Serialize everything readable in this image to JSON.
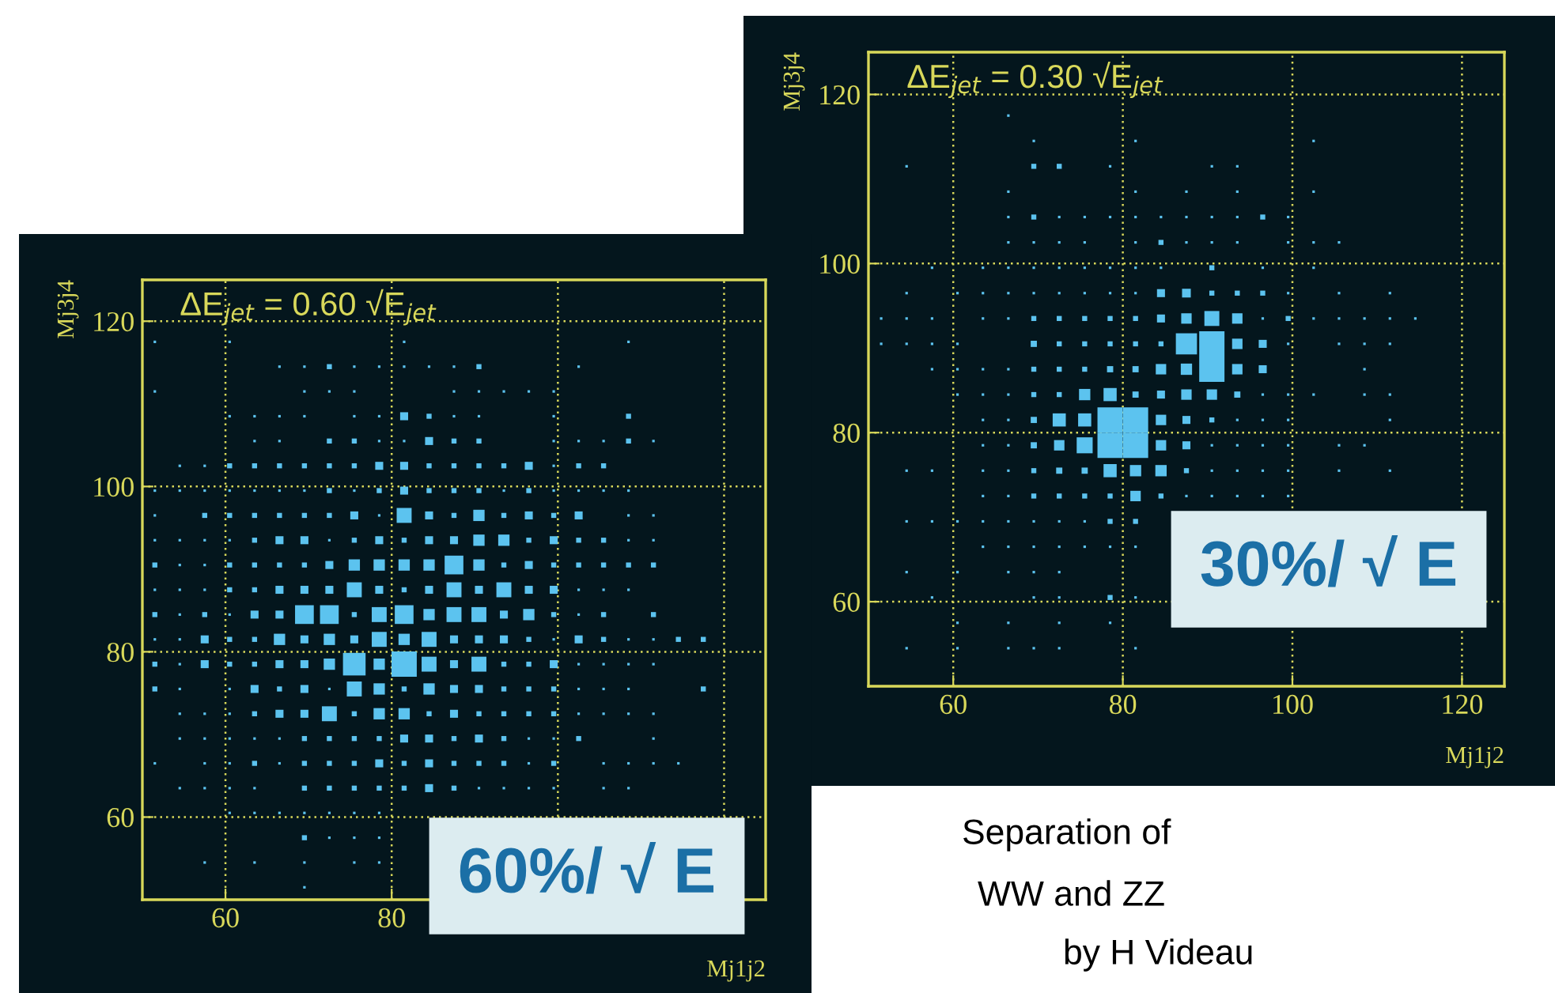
{
  "chart_data": [
    {
      "type": "bubble",
      "title": "ΔE$_{jet}$ = 0.60 √E$_{jet}$",
      "xlabel": "Mj1j2",
      "ylabel": "Mj3j4",
      "marker": "square",
      "grid": true,
      "xlim": [
        50,
        125
      ],
      "ylim": [
        50,
        125
      ],
      "xticks": [
        60,
        80,
        {
          "value": 100,
          "label": null
        },
        {
          "value": 120,
          "label": null
        }
      ],
      "yticks": [
        60,
        80,
        100,
        120
      ],
      "annotations": [
        "60%/ √ E"
      ],
      "series": [
        {
          "color": "#5cc3ef",
          "x": [
            51.5,
            60.5,
            81.5,
            108.5,
            66.5,
            69.5,
            72.5,
            75.5,
            78.5,
            81.5,
            84.5,
            87.5,
            90.5,
            102.5,
            51.5,
            69.5,
            72.5,
            75.5,
            87.5,
            90.5,
            93.5,
            96.5,
            99.5,
            60.5,
            63.5,
            66.5,
            69.5,
            75.5,
            78.5,
            81.5,
            84.5,
            87.5,
            90.5,
            99.5,
            108.5,
            63.5,
            66.5,
            72.5,
            75.5,
            78.5,
            81.5,
            84.5,
            87.5,
            90.5,
            99.5,
            102.5,
            105.5,
            108.5,
            111.5,
            54.5,
            57.5,
            60.5,
            63.5,
            66.5,
            69.5,
            72.5,
            75.5,
            78.5,
            81.5,
            84.5,
            87.5,
            90.5,
            93.5,
            96.5,
            99.5,
            102.5,
            105.5,
            51.5,
            54.5,
            57.5,
            60.5,
            63.5,
            66.5,
            69.5,
            72.5,
            75.5,
            78.5,
            81.5,
            84.5,
            87.5,
            90.5,
            93.5,
            96.5,
            99.5,
            102.5,
            105.5,
            108.5,
            51.5,
            57.5,
            60.5,
            63.5,
            66.5,
            69.5,
            72.5,
            75.5,
            78.5,
            81.5,
            84.5,
            87.5,
            90.5,
            93.5,
            96.5,
            99.5,
            102.5,
            108.5,
            111.5,
            51.5,
            54.5,
            57.5,
            60.5,
            63.5,
            66.5,
            69.5,
            72.5,
            75.5,
            78.5,
            81.5,
            84.5,
            87.5,
            90.5,
            93.5,
            96.5,
            99.5,
            102.5,
            105.5,
            108.5,
            111.5,
            51.5,
            54.5,
            57.5,
            60.5,
            63.5,
            66.5,
            69.5,
            72.5,
            75.5,
            78.5,
            81.5,
            84.5,
            87.5,
            90.5,
            93.5,
            96.5,
            99.5,
            102.5,
            105.5,
            108.5,
            111.5,
            51.5,
            54.5,
            57.5,
            60.5,
            63.5,
            66.5,
            69.5,
            72.5,
            75.5,
            78.5,
            81.5,
            84.5,
            87.5,
            90.5,
            93.5,
            96.5,
            99.5,
            102.5,
            105.5,
            108.5,
            51.5,
            54.5,
            57.5,
            60.5,
            63.5,
            66.5,
            69.5,
            72.5,
            75.5,
            78.5,
            81.5,
            84.5,
            87.5,
            90.5,
            93.5,
            96.5,
            99.5,
            102.5,
            105.5,
            111.5,
            51.5,
            54.5,
            57.5,
            60.5,
            63.5,
            66.5,
            69.5,
            72.5,
            75.5,
            78.5,
            81.5,
            84.5,
            87.5,
            90.5,
            93.5,
            96.5,
            99.5,
            102.5,
            105.5,
            108.5,
            111.5,
            114.5,
            117.5,
            51.5,
            54.5,
            57.5,
            60.5,
            63.5,
            66.5,
            69.5,
            72.5,
            75.5,
            78.5,
            81.5,
            84.5,
            87.5,
            90.5,
            93.5,
            96.5,
            99.5,
            102.5,
            105.5,
            108.5,
            111.5,
            51.5,
            54.5,
            60.5,
            63.5,
            66.5,
            69.5,
            72.5,
            75.5,
            78.5,
            81.5,
            84.5,
            87.5,
            90.5,
            93.5,
            96.5,
            99.5,
            102.5,
            105.5,
            108.5,
            117.5,
            54.5,
            57.5,
            60.5,
            63.5,
            66.5,
            69.5,
            72.5,
            75.5,
            78.5,
            81.5,
            84.5,
            87.5,
            90.5,
            93.5,
            96.5,
            99.5,
            102.5,
            105.5,
            108.5,
            111.5,
            54.5,
            57.5,
            60.5,
            63.5,
            66.5,
            69.5,
            72.5,
            75.5,
            78.5,
            81.5,
            84.5,
            87.5,
            90.5,
            93.5,
            96.5,
            99.5,
            102.5,
            111.5,
            51.5,
            57.5,
            60.5,
            63.5,
            66.5,
            69.5,
            72.5,
            75.5,
            78.5,
            81.5,
            84.5,
            87.5,
            90.5,
            93.5,
            96.5,
            99.5,
            105.5,
            108.5,
            111.5,
            114.5,
            54.5,
            57.5,
            60.5,
            63.5,
            69.5,
            72.5,
            75.5,
            78.5,
            81.5,
            84.5,
            87.5,
            90.5,
            93.5,
            96.5,
            99.5,
            105.5,
            108.5,
            60.5,
            63.5,
            66.5,
            69.5,
            72.5,
            75.5,
            78.5,
            69.5,
            72.5,
            75.5,
            78.5,
            57.5,
            63.5,
            69.5,
            75.5,
            78.5,
            69.5
          ],
          "values": [
            117.5,
            117.5,
            117.5,
            117.5,
            114.5,
            114.5,
            114.5,
            114.5,
            114.5,
            114.5,
            114.5,
            114.5,
            114.5,
            114.5,
            111.5,
            111.5,
            111.5,
            111.5,
            111.5,
            111.5,
            111.5,
            111.5,
            111.5,
            108.5,
            108.5,
            108.5,
            108.5,
            108.5,
            108.5,
            108.5,
            108.5,
            108.5,
            108.5,
            108.5,
            108.5,
            105.5,
            105.5,
            105.5,
            105.5,
            105.5,
            105.5,
            105.5,
            105.5,
            105.5,
            105.5,
            105.5,
            105.5,
            105.5,
            105.5,
            102.5,
            102.5,
            102.5,
            102.5,
            102.5,
            102.5,
            102.5,
            102.5,
            102.5,
            102.5,
            102.5,
            102.5,
            102.5,
            102.5,
            102.5,
            102.5,
            102.5,
            102.5,
            99.5,
            99.5,
            99.5,
            99.5,
            99.5,
            99.5,
            99.5,
            99.5,
            99.5,
            99.5,
            99.5,
            99.5,
            99.5,
            99.5,
            99.5,
            99.5,
            99.5,
            99.5,
            99.5,
            99.5,
            96.5,
            96.5,
            96.5,
            96.5,
            96.5,
            96.5,
            96.5,
            96.5,
            96.5,
            96.5,
            96.5,
            96.5,
            96.5,
            96.5,
            96.5,
            96.5,
            96.5,
            96.5,
            96.5,
            93.5,
            93.5,
            93.5,
            93.5,
            93.5,
            93.5,
            93.5,
            93.5,
            93.5,
            93.5,
            93.5,
            93.5,
            93.5,
            93.5,
            93.5,
            93.5,
            93.5,
            93.5,
            93.5,
            93.5,
            93.5,
            90.5,
            90.5,
            90.5,
            90.5,
            90.5,
            90.5,
            90.5,
            90.5,
            90.5,
            90.5,
            90.5,
            90.5,
            90.5,
            90.5,
            90.5,
            90.5,
            90.5,
            90.5,
            90.5,
            90.5,
            90.5,
            87.5,
            87.5,
            87.5,
            87.5,
            87.5,
            87.5,
            87.5,
            87.5,
            87.5,
            87.5,
            87.5,
            87.5,
            87.5,
            87.5,
            87.5,
            87.5,
            87.5,
            87.5,
            87.5,
            87.5,
            84.5,
            84.5,
            84.5,
            84.5,
            84.5,
            84.5,
            84.5,
            84.5,
            84.5,
            84.5,
            84.5,
            84.5,
            84.5,
            84.5,
            84.5,
            84.5,
            84.5,
            84.5,
            84.5,
            84.5,
            81.5,
            81.5,
            81.5,
            81.5,
            81.5,
            81.5,
            81.5,
            81.5,
            81.5,
            81.5,
            81.5,
            81.5,
            81.5,
            81.5,
            81.5,
            81.5,
            81.5,
            81.5,
            81.5,
            81.5,
            81.5,
            81.5,
            81.5,
            78.5,
            78.5,
            78.5,
            78.5,
            78.5,
            78.5,
            78.5,
            78.5,
            78.5,
            78.5,
            78.5,
            78.5,
            78.5,
            78.5,
            78.5,
            78.5,
            78.5,
            78.5,
            78.5,
            78.5,
            78.5,
            75.5,
            75.5,
            75.5,
            75.5,
            75.5,
            75.5,
            75.5,
            75.5,
            75.5,
            75.5,
            75.5,
            75.5,
            75.5,
            75.5,
            75.5,
            75.5,
            75.5,
            75.5,
            75.5,
            75.5,
            72.5,
            72.5,
            72.5,
            72.5,
            72.5,
            72.5,
            72.5,
            72.5,
            72.5,
            72.5,
            72.5,
            72.5,
            72.5,
            72.5,
            72.5,
            72.5,
            72.5,
            72.5,
            72.5,
            72.5,
            69.5,
            69.5,
            69.5,
            69.5,
            69.5,
            69.5,
            69.5,
            69.5,
            69.5,
            69.5,
            69.5,
            69.5,
            69.5,
            69.5,
            69.5,
            69.5,
            69.5,
            69.5,
            66.5,
            66.5,
            66.5,
            66.5,
            66.5,
            66.5,
            66.5,
            66.5,
            66.5,
            66.5,
            66.5,
            66.5,
            66.5,
            66.5,
            66.5,
            66.5,
            66.5,
            66.5,
            66.5,
            66.5,
            63.5,
            63.5,
            63.5,
            63.5,
            63.5,
            63.5,
            63.5,
            63.5,
            63.5,
            63.5,
            63.5,
            63.5,
            63.5,
            63.5,
            63.5,
            63.5,
            63.5,
            60.5,
            60.5,
            60.5,
            60.5,
            60.5,
            60.5,
            60.5,
            57.5,
            57.5,
            57.5,
            57.5,
            54.5,
            54.5,
            54.5,
            54.5,
            54.5,
            51.5
          ],
          "sizes": [
            0.01,
            0.01,
            0.01,
            0.01,
            0.01,
            0.01,
            0.04,
            0.01,
            0.01,
            0.01,
            0.01,
            0.01,
            0.04,
            0.01,
            0.01,
            0.01,
            0.01,
            0.01,
            0.01,
            0.01,
            0.01,
            0.01,
            0.01,
            0.01,
            0.01,
            0.01,
            0.01,
            0.01,
            0.01,
            0.1,
            0.04,
            0.01,
            0.01,
            0.01,
            0.04,
            0.01,
            0.01,
            0.04,
            0.04,
            0.01,
            0.01,
            0.1,
            0.04,
            0.04,
            0.01,
            0.01,
            0.01,
            0.04,
            0.01,
            0.01,
            0.01,
            0.04,
            0.04,
            0.04,
            0.04,
            0.04,
            0.04,
            0.1,
            0.1,
            0.04,
            0.04,
            0.04,
            0.04,
            0.1,
            0.01,
            0.04,
            0.04,
            0.01,
            0.01,
            0.01,
            0.01,
            0.01,
            0.01,
            0.01,
            0.04,
            0.01,
            0.04,
            0.1,
            0.04,
            0.04,
            0.04,
            0.01,
            0.04,
            0.01,
            0.01,
            0.01,
            0.01,
            0.01,
            0.04,
            0.04,
            0.04,
            0.04,
            0.04,
            0.04,
            0.1,
            0.01,
            0.35,
            0.1,
            0.04,
            0.2,
            0.04,
            0.1,
            0.04,
            0.1,
            0.01,
            0.01,
            0.01,
            0.01,
            0.01,
            0.01,
            0.04,
            0.1,
            0.1,
            0.01,
            0.04,
            0.1,
            0.04,
            0.1,
            0.1,
            0.2,
            0.2,
            0.04,
            0.1,
            0.04,
            0.04,
            0.01,
            0.01,
            0.04,
            0.01,
            0.01,
            0.04,
            0.04,
            0.04,
            0.04,
            0.1,
            0.2,
            0.2,
            0.2,
            0.2,
            0.55,
            0.2,
            0.04,
            0.1,
            0.04,
            0.04,
            0.04,
            0.04,
            0.04,
            0.01,
            0.01,
            0.01,
            0.04,
            0.04,
            0.1,
            0.1,
            0.1,
            0.35,
            0.1,
            0.04,
            0.1,
            0.35,
            0.1,
            0.35,
            0.1,
            0.1,
            0.01,
            0.01,
            0.01,
            0.04,
            0.01,
            0.04,
            0.01,
            0.1,
            0.1,
            0.55,
            0.55,
            0.04,
            0.35,
            0.55,
            0.2,
            0.35,
            0.35,
            0.1,
            0.2,
            0.04,
            0.01,
            0.04,
            0.04,
            0.01,
            0.01,
            0.1,
            0.04,
            0.04,
            0.2,
            0.1,
            0.2,
            0.1,
            0.35,
            0.2,
            0.35,
            0.1,
            0.1,
            0.1,
            0.04,
            0.01,
            0.1,
            0.04,
            0.01,
            0.01,
            0.04,
            0.04,
            0.04,
            0.01,
            0.1,
            0.04,
            0.04,
            0.1,
            0.1,
            0.2,
            0.8,
            0.2,
            1,
            0.35,
            0.1,
            0.35,
            0.04,
            0.04,
            0.1,
            0.01,
            0.01,
            0.01,
            0.01,
            0.04,
            0.01,
            0.01,
            0.1,
            0.04,
            0.1,
            0.01,
            0.35,
            0.2,
            0.04,
            0.2,
            0.1,
            0.1,
            0.04,
            0.04,
            0.04,
            0.01,
            0.01,
            0.01,
            0.04,
            0.01,
            0.01,
            0.01,
            0.04,
            0.1,
            0.1,
            0.35,
            0.04,
            0.2,
            0.2,
            0.04,
            0.1,
            0.04,
            0.04,
            0.04,
            0.04,
            0.01,
            0.01,
            0.01,
            0.01,
            0.01,
            0.01,
            0.01,
            0.01,
            0.01,
            0.04,
            0.04,
            0.04,
            0.04,
            0.1,
            0.1,
            0.04,
            0.1,
            0.04,
            0.01,
            0.01,
            0.04,
            0.01,
            0.01,
            0.01,
            0.01,
            0.04,
            0.01,
            0.04,
            0.04,
            0.04,
            0.1,
            0.04,
            0.1,
            0.04,
            0.04,
            0.04,
            0.01,
            0.04,
            0.01,
            0.01,
            0.01,
            0.01,
            0.01,
            0.01,
            0.01,
            0.01,
            0.04,
            0.04,
            0.04,
            0.04,
            0.04,
            0.1,
            0.04,
            0.01,
            0.01,
            0.01,
            0.01,
            0.01,
            0.01,
            0.01,
            0.01,
            0.01,
            0.01,
            0.01,
            0.01,
            0.01,
            0.04,
            0.01,
            0.01,
            0.01,
            0.01,
            0.01,
            0.01,
            0.01,
            0.01,
            0.01
          ]
        }
      ]
    },
    {
      "type": "bubble",
      "title": "ΔE$_{jet}$ = 0.30 √E$_{jet}$",
      "xlabel": "Mj1j2",
      "ylabel": "Mj3j4",
      "marker": "square",
      "grid": true,
      "xlim": [
        50,
        125
      ],
      "ylim": [
        50,
        125
      ],
      "xticks": [
        60,
        80,
        100,
        120
      ],
      "yticks": [
        60,
        80,
        100,
        120
      ],
      "annotations": [
        "30%/ √ E",
        "Separation of\nWW and ZZ\nby H Videau"
      ],
      "series": [
        {
          "color": "#5cc3ef",
          "x": [
            66.5,
            69.5,
            81.5,
            102.5,
            54.5,
            69.5,
            72.5,
            78.5,
            90.5,
            93.5,
            66.5,
            81.5,
            87.5,
            93.5,
            102.5,
            66.5,
            69.5,
            72.5,
            75.5,
            78.5,
            81.5,
            84.5,
            87.5,
            90.5,
            93.5,
            96.5,
            99.5,
            66.5,
            69.5,
            72.5,
            75.5,
            81.5,
            84.5,
            87.5,
            90.5,
            93.5,
            99.5,
            102.5,
            105.5,
            57.5,
            63.5,
            66.5,
            69.5,
            72.5,
            75.5,
            78.5,
            81.5,
            84.5,
            90.5,
            96.5,
            102.5,
            54.5,
            60.5,
            63.5,
            66.5,
            69.5,
            72.5,
            75.5,
            78.5,
            81.5,
            84.5,
            87.5,
            90.5,
            93.5,
            96.5,
            99.5,
            105.5,
            111.5,
            51.5,
            54.5,
            57.5,
            63.5,
            66.5,
            69.5,
            72.5,
            75.5,
            78.5,
            81.5,
            84.5,
            87.5,
            90.5,
            93.5,
            96.5,
            99.5,
            102.5,
            105.5,
            108.5,
            111.5,
            114.5,
            51.5,
            54.5,
            57.5,
            60.5,
            69.5,
            72.5,
            75.5,
            78.5,
            81.5,
            84.5,
            87.5,
            90.5,
            93.5,
            96.5,
            99.5,
            105.5,
            108.5,
            111.5,
            57.5,
            60.5,
            63.5,
            66.5,
            69.5,
            72.5,
            75.5,
            78.5,
            81.5,
            84.5,
            87.5,
            90.5,
            93.5,
            96.5,
            108.5,
            60.5,
            63.5,
            66.5,
            69.5,
            72.5,
            75.5,
            78.5,
            81.5,
            84.5,
            87.5,
            90.5,
            93.5,
            96.5,
            99.5,
            102.5,
            108.5,
            111.5,
            63.5,
            66.5,
            69.5,
            72.5,
            75.5,
            78.5,
            81.5,
            84.5,
            87.5,
            90.5,
            93.5,
            96.5,
            99.5,
            111.5,
            63.5,
            66.5,
            69.5,
            72.5,
            75.5,
            78.5,
            81.5,
            84.5,
            87.5,
            90.5,
            93.5,
            96.5,
            99.5,
            105.5,
            108.5,
            54.5,
            57.5,
            63.5,
            66.5,
            69.5,
            72.5,
            75.5,
            78.5,
            81.5,
            84.5,
            87.5,
            90.5,
            93.5,
            96.5,
            99.5,
            105.5,
            111.5,
            63.5,
            66.5,
            69.5,
            72.5,
            75.5,
            78.5,
            81.5,
            84.5,
            87.5,
            90.5,
            93.5,
            96.5,
            99.5,
            54.5,
            57.5,
            60.5,
            63.5,
            66.5,
            69.5,
            72.5,
            75.5,
            78.5,
            81.5,
            63.5,
            66.5,
            69.5,
            72.5,
            75.5,
            78.5,
            81.5,
            54.5,
            60.5,
            66.5,
            69.5,
            72.5,
            57.5,
            69.5,
            72.5,
            78.5,
            81.5,
            60.5,
            66.5,
            72.5,
            78.5,
            54.5,
            60.5,
            66.5,
            69.5,
            72.5,
            81.5
          ],
          "values": [
            117.5,
            114.5,
            114.5,
            114.5,
            111.5,
            111.5,
            111.5,
            111.5,
            111.5,
            111.5,
            108.5,
            108.5,
            108.5,
            108.5,
            108.5,
            105.5,
            105.5,
            105.5,
            105.5,
            105.5,
            105.5,
            105.5,
            105.5,
            105.5,
            105.5,
            105.5,
            105.5,
            102.5,
            102.5,
            102.5,
            102.5,
            102.5,
            102.5,
            102.5,
            102.5,
            102.5,
            102.5,
            102.5,
            102.5,
            99.5,
            99.5,
            99.5,
            99.5,
            99.5,
            99.5,
            99.5,
            99.5,
            99.5,
            99.5,
            99.5,
            99.5,
            96.5,
            96.5,
            96.5,
            96.5,
            96.5,
            96.5,
            96.5,
            96.5,
            96.5,
            96.5,
            96.5,
            96.5,
            96.5,
            96.5,
            96.5,
            96.5,
            96.5,
            93.5,
            93.5,
            93.5,
            93.5,
            93.5,
            93.5,
            93.5,
            93.5,
            93.5,
            93.5,
            93.5,
            93.5,
            93.5,
            93.5,
            93.5,
            93.5,
            93.5,
            93.5,
            93.5,
            93.5,
            93.5,
            90.5,
            90.5,
            90.5,
            90.5,
            90.5,
            90.5,
            90.5,
            90.5,
            90.5,
            90.5,
            90.5,
            90.5,
            90.5,
            90.5,
            90.5,
            90.5,
            90.5,
            90.5,
            87.5,
            87.5,
            87.5,
            87.5,
            87.5,
            87.5,
            87.5,
            87.5,
            87.5,
            87.5,
            87.5,
            87.5,
            87.5,
            87.5,
            87.5,
            84.5,
            84.5,
            84.5,
            84.5,
            84.5,
            84.5,
            84.5,
            84.5,
            84.5,
            84.5,
            84.5,
            84.5,
            84.5,
            84.5,
            84.5,
            84.5,
            84.5,
            81.5,
            81.5,
            81.5,
            81.5,
            81.5,
            81.5,
            81.5,
            81.5,
            81.5,
            81.5,
            81.5,
            81.5,
            81.5,
            81.5,
            78.5,
            78.5,
            78.5,
            78.5,
            78.5,
            78.5,
            78.5,
            78.5,
            78.5,
            78.5,
            78.5,
            78.5,
            78.5,
            78.5,
            78.5,
            75.5,
            75.5,
            75.5,
            75.5,
            75.5,
            75.5,
            75.5,
            75.5,
            75.5,
            75.5,
            75.5,
            75.5,
            75.5,
            75.5,
            75.5,
            75.5,
            75.5,
            72.5,
            72.5,
            72.5,
            72.5,
            72.5,
            72.5,
            72.5,
            72.5,
            72.5,
            72.5,
            72.5,
            72.5,
            72.5,
            69.5,
            69.5,
            69.5,
            69.5,
            69.5,
            69.5,
            69.5,
            69.5,
            69.5,
            69.5,
            66.5,
            66.5,
            66.5,
            66.5,
            66.5,
            66.5,
            66.5,
            63.5,
            63.5,
            63.5,
            63.5,
            63.5,
            60.5,
            60.5,
            60.5,
            60.5,
            60.5,
            57.5,
            57.5,
            57.5,
            57.5,
            54.5,
            54.5,
            54.5,
            54.5,
            54.5,
            54.5
          ],
          "sizes": [
            0.01,
            0.01,
            0.01,
            0.01,
            0.01,
            0.04,
            0.04,
            0.01,
            0.01,
            0.01,
            0.01,
            0.01,
            0.01,
            0.01,
            0.01,
            0.01,
            0.04,
            0.01,
            0.01,
            0.01,
            0.01,
            0.01,
            0.01,
            0.01,
            0.01,
            0.04,
            0.01,
            0.01,
            0.01,
            0.01,
            0.01,
            0.01,
            0.04,
            0.01,
            0.01,
            0.01,
            0.01,
            0.01,
            0.01,
            0.01,
            0.01,
            0.01,
            0.01,
            0.01,
            0.01,
            0.01,
            0.01,
            0.01,
            0.04,
            0.01,
            0.01,
            0.01,
            0.01,
            0.01,
            0.01,
            0.01,
            0.01,
            0.01,
            0.01,
            0.01,
            0.1,
            0.12,
            0.04,
            0.04,
            0.04,
            0.01,
            0.01,
            0.01,
            0.01,
            0.01,
            0.01,
            0.01,
            0.01,
            0.04,
            0.04,
            0.04,
            0.04,
            0.04,
            0.1,
            0.17,
            0.35,
            0.17,
            0.01,
            0.04,
            0.01,
            0.01,
            0.01,
            0.01,
            0.01,
            0.01,
            0.01,
            0.01,
            0.01,
            0.06,
            0.04,
            0.04,
            0.04,
            0.04,
            0.04,
            0.7,
            1,
            0.17,
            0.1,
            0.01,
            0.01,
            0.01,
            0.01,
            0.01,
            0.01,
            0.01,
            0.01,
            0.04,
            0.04,
            0.04,
            0.06,
            0.06,
            0.17,
            0.2,
            1,
            0.17,
            0.1,
            0.01,
            0.01,
            0.01,
            0.01,
            0.04,
            0.04,
            0.2,
            0.27,
            0.06,
            0.1,
            0.17,
            0.17,
            0.06,
            0.01,
            0.01,
            0.01,
            0.01,
            0.01,
            0.01,
            0.01,
            0.06,
            0.27,
            0.27,
            1,
            1,
            0.17,
            0.1,
            0.04,
            0.01,
            0.01,
            0.01,
            0.01,
            0.01,
            0.01,
            0.06,
            0.17,
            0.4,
            1,
            1,
            0.17,
            0.1,
            0.01,
            0.01,
            0.01,
            0.01,
            0.01,
            0.01,
            0.01,
            0.01,
            0.01,
            0.01,
            0.04,
            0.06,
            0.06,
            0.27,
            0.2,
            0.2,
            0.04,
            0.01,
            0.01,
            0.01,
            0.01,
            0.01,
            0.01,
            0.01,
            0.01,
            0.04,
            0.04,
            0.04,
            0.04,
            0.17,
            0.04,
            0.01,
            0.01,
            0.01,
            0.01,
            0.01,
            0.01,
            0.01,
            0.01,
            0.01,
            0.01,
            0.01,
            0.01,
            0.01,
            0.04,
            0.04,
            0.01,
            0.01,
            0.01,
            0.01,
            0.01,
            0.01,
            0.01,
            0.01,
            0.01,
            0.01,
            0.01,
            0.01,
            0.01,
            0.01,
            0.01,
            0.04,
            0.01,
            0.01,
            0.01,
            0.01,
            0.01,
            0.01,
            0.01,
            0.01,
            0.01,
            0.01,
            0.01
          ]
        }
      ]
    }
  ]
}
